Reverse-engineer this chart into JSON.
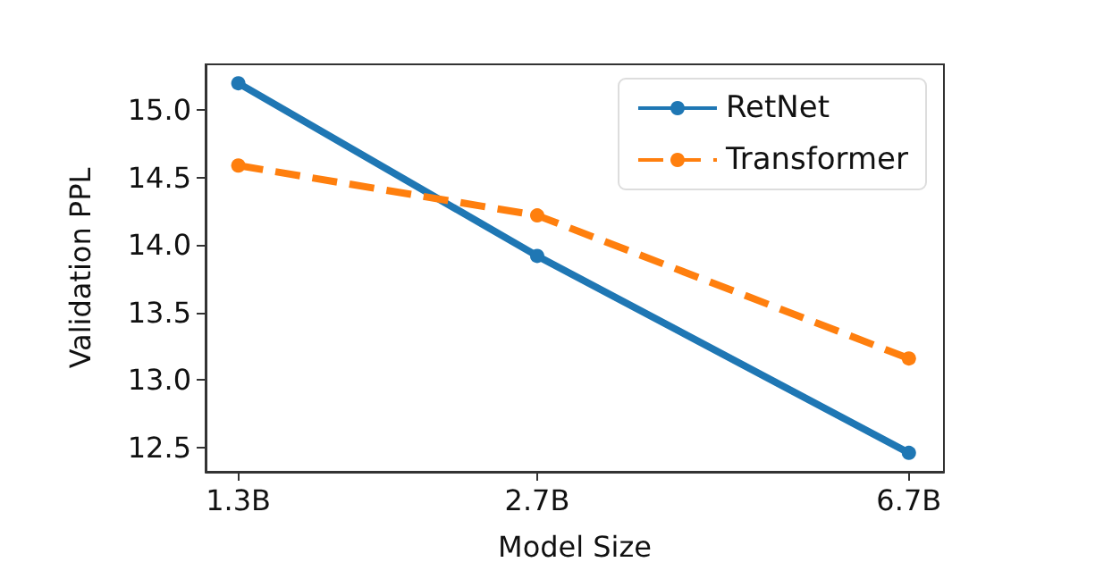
{
  "chart_data": {
    "type": "line",
    "xlabel": "Model Size",
    "ylabel": "Validation PPL",
    "x": [
      1.3,
      2.7,
      6.7
    ],
    "series": [
      {
        "name": "RetNet",
        "color": "#1f77b4",
        "values": [
          15.2,
          13.92,
          12.46
        ],
        "line_style": "solid"
      },
      {
        "name": "Transformer",
        "color": "#ff7f0e",
        "values": [
          14.59,
          14.22,
          13.16
        ],
        "line_style": "dashed"
      }
    ],
    "log": "x",
    "xlim": [
      1.2,
      7.3
    ],
    "xticks": [
      {
        "value": 1.3,
        "label": "1.3B"
      },
      {
        "value": 2.7,
        "label": "2.7B"
      },
      {
        "value": 6.7,
        "label": "6.7B"
      }
    ],
    "ylim": [
      12.32,
      15.34
    ],
    "yticks": [
      12.5,
      {
        "value": 13,
        "label": "13.0"
      },
      13.5,
      {
        "value": 14,
        "label": "14.0"
      },
      14.5,
      {
        "value": 15,
        "label": "15.0"
      }
    ],
    "grid": false,
    "legend": "top right",
    "marker": "circle"
  }
}
